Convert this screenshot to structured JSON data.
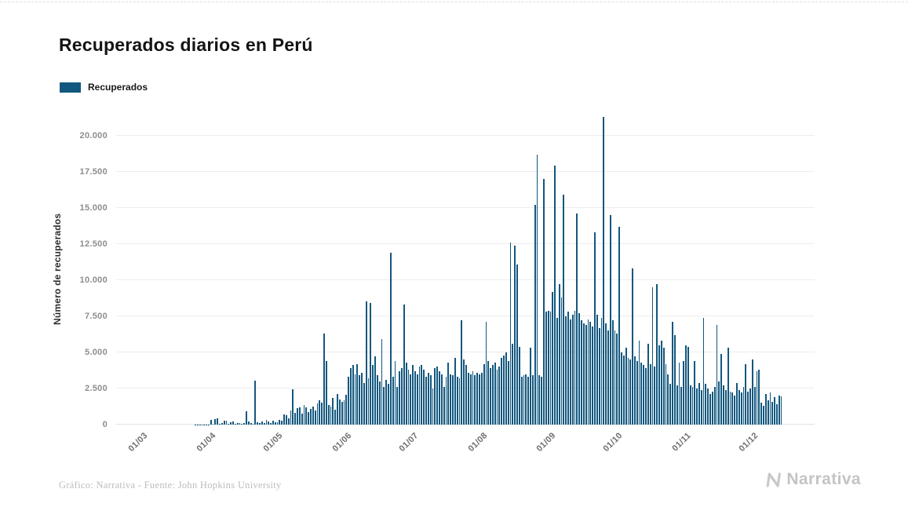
{
  "page": {
    "title": "Recuperados diarios en Perú",
    "footer_credit": "Gráfico: Narrativa - Fuente: John Hopkins University",
    "brand": "Narrativa"
  },
  "legend": {
    "label": "Recuperados",
    "color": "#12577e"
  },
  "chart_data": {
    "type": "bar",
    "title": "Recuperados diarios en Perú",
    "xlabel": "",
    "ylabel": "Número de recuperados",
    "legend_entries": [
      "Recuperados"
    ],
    "legend_position": "top-left",
    "bar_color": "#12577e",
    "grid": true,
    "ylim": [
      0,
      21500
    ],
    "ytick_values": [
      0,
      2500,
      5000,
      7500,
      10000,
      12500,
      15000,
      17500,
      20000
    ],
    "ytick_labels": [
      "0",
      "2.500",
      "5.000",
      "7.500",
      "10.000",
      "12.500",
      "15.000",
      "17.500",
      "20.000"
    ],
    "xtick_labels": [
      "01/03",
      "01/04",
      "01/05",
      "01/06",
      "01/07",
      "01/08",
      "01/09",
      "01/10",
      "01/11",
      "01/12"
    ],
    "xtick_positions": [
      5,
      36,
      66,
      97,
      127,
      158,
      189,
      219,
      250,
      280
    ],
    "x_start_date": "25/02/2020",
    "x_frequency": "daily",
    "series": [
      {
        "name": "Recuperados",
        "values": [
          0,
          0,
          0,
          0,
          0,
          0,
          0,
          0,
          0,
          0,
          0,
          0,
          0,
          0,
          0,
          0,
          0,
          0,
          0,
          0,
          0,
          0,
          0,
          0,
          1,
          1,
          2,
          3,
          4,
          6,
          8,
          10,
          12,
          14,
          16,
          17,
          340,
          60,
          390,
          410,
          50,
          130,
          250,
          290,
          60,
          160,
          220,
          80,
          120,
          100,
          60,
          130,
          950,
          240,
          130,
          60,
          3050,
          180,
          90,
          220,
          130,
          310,
          240,
          130,
          280,
          150,
          150,
          320,
          280,
          700,
          650,
          420,
          980,
          2450,
          820,
          1150,
          1220,
          760,
          1340,
          1180,
          890,
          1060,
          1230,
          980,
          1450,
          1680,
          1520,
          6300,
          4400,
          1350,
          1260,
          1840,
          1050,
          2100,
          1740,
          1580,
          1690,
          2050,
          3300,
          3900,
          4100,
          3500,
          4200,
          3400,
          3600,
          2900,
          8500,
          3200,
          8400,
          4100,
          4700,
          3400,
          3000,
          5900,
          2600,
          3100,
          2800,
          11900,
          3300,
          4400,
          2600,
          3700,
          3900,
          8300,
          4300,
          3800,
          3500,
          4100,
          3700,
          3500,
          4000,
          4100,
          3800,
          3300,
          3600,
          3400,
          2500,
          3900,
          4000,
          3700,
          3500,
          2600,
          3300,
          4300,
          3500,
          3400,
          4600,
          3300,
          3200,
          7200,
          4500,
          4100,
          3600,
          3500,
          3700,
          3400,
          3600,
          3500,
          3600,
          4200,
          7100,
          4400,
          3900,
          4100,
          4300,
          3800,
          4000,
          4600,
          4800,
          5000,
          4400,
          12600,
          5600,
          12400,
          11100,
          5400,
          3300,
          3400,
          3500,
          3300,
          5300,
          3400,
          15200,
          18700,
          3400,
          3300,
          17000,
          7800,
          7900,
          7800,
          9200,
          17900,
          7400,
          9700,
          8800,
          15900,
          7500,
          7800,
          7300,
          7600,
          7900,
          14600,
          7700,
          7200,
          7000,
          6900,
          7300,
          7100,
          6800,
          13300,
          7600,
          6700,
          7400,
          21300,
          7000,
          6500,
          14500,
          7200,
          6500,
          6300,
          13700,
          5000,
          4800,
          5300,
          4600,
          4500,
          10800,
          4700,
          4400,
          5800,
          4300,
          4100,
          3900,
          5600,
          4200,
          9500,
          4000,
          9700,
          5500,
          5800,
          5300,
          4200,
          3500,
          2800,
          7100,
          6200,
          2700,
          4300,
          2600,
          4400,
          5500,
          5400,
          2700,
          2600,
          4400,
          2500,
          2900,
          2400,
          7400,
          2800,
          2500,
          2100,
          2300,
          2600,
          6900,
          3000,
          4900,
          2700,
          2400,
          5300,
          2300,
          2200,
          2000,
          2900,
          2400,
          2200,
          2600,
          4200,
          2300,
          2500,
          4500,
          2600,
          3700,
          3800,
          1500,
          1300,
          2100,
          1700,
          2200,
          1600,
          1900,
          1400,
          2000,
          1950
        ]
      }
    ]
  }
}
